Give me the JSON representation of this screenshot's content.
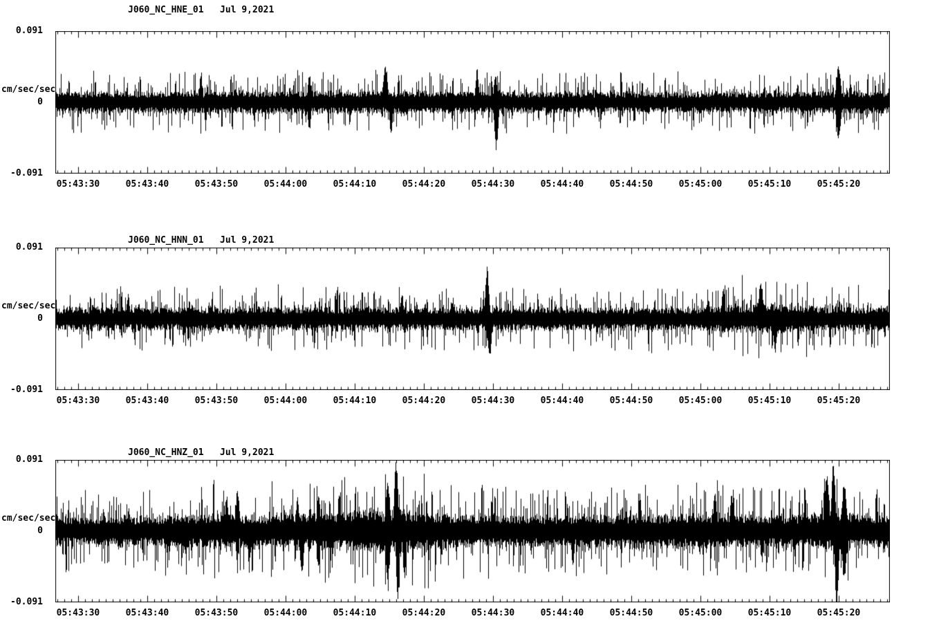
{
  "page": {
    "background": "#ffffff",
    "trace_color": "#000000",
    "description": "Three-component strong-motion seismogram display (acceleration traces) for station J060, network NC, Jul 9 2021"
  },
  "chart_data": [
    {
      "type": "line",
      "kind": "seismogram",
      "title": "J060_NC_HNE_01   Jul 9,2021",
      "station": "J060_NC_HNE_01",
      "date": "Jul 9,2021",
      "ylabel": "cm/sec/sec",
      "ytick_labels": [
        "0.091",
        "0",
        "-0.091"
      ],
      "ylim": [
        -0.091,
        0.091
      ],
      "x_tick_labels": [
        "05:43:30",
        "05:43:40",
        "05:43:50",
        "05:44:00",
        "05:44:10",
        "05:44:20",
        "05:44:30",
        "05:44:40",
        "05:44:50",
        "05:45:00",
        "05:45:10",
        "05:45:20"
      ],
      "axis": {
        "major_first_frac": 0.0273,
        "major_step_frac": 0.08285,
        "minors_per_major": 10,
        "grid": false
      },
      "noise": {
        "seed": 11,
        "base_amp": 0.0155,
        "envelope": [
          [
            0,
            1
          ],
          [
            0.38,
            1.05
          ],
          [
            0.55,
            1.0
          ],
          [
            0.78,
            0.92
          ],
          [
            0.9,
            1.0
          ],
          [
            1,
            1.02
          ]
        ],
        "spikes": [
          {
            "f": 0.174,
            "amp": 0.034,
            "dir": 1,
            "w": 2
          },
          {
            "f": 0.304,
            "amp": 0.036,
            "dir": 0,
            "w": 2
          },
          {
            "f": 0.395,
            "amp": 0.044,
            "dir": 1,
            "w": 3
          },
          {
            "f": 0.402,
            "amp": 0.04,
            "dir": -1,
            "w": 2
          },
          {
            "f": 0.505,
            "amp": 0.042,
            "dir": 1,
            "w": 2
          },
          {
            "f": 0.527,
            "amp": 0.036,
            "dir": 1,
            "w": 2
          },
          {
            "f": 0.528,
            "amp": 0.057,
            "dir": -1,
            "w": 2.5
          },
          {
            "f": 0.938,
            "amp": 0.045,
            "dir": 0,
            "w": 3
          }
        ]
      }
    },
    {
      "type": "line",
      "kind": "seismogram",
      "title": "J060_NC_HNN_01   Jul 9,2021",
      "station": "J060_NC_HNN_01",
      "date": "Jul 9,2021",
      "ylabel": "cm/sec/sec",
      "ytick_labels": [
        "0.091",
        "0",
        "-0.091"
      ],
      "ylim": [
        -0.091,
        0.091
      ],
      "x_tick_labels": [
        "05:43:30",
        "05:43:40",
        "05:43:50",
        "05:44:00",
        "05:44:10",
        "05:44:20",
        "05:44:30",
        "05:44:40",
        "05:44:50",
        "05:45:00",
        "05:45:10",
        "05:45:20"
      ],
      "axis": {
        "major_first_frac": 0.0273,
        "major_step_frac": 0.08285,
        "minors_per_major": 10,
        "grid": false
      },
      "noise": {
        "seed": 22,
        "base_amp": 0.0165,
        "envelope": [
          [
            0,
            1.02
          ],
          [
            0.5,
            1.0
          ],
          [
            0.77,
            0.98
          ],
          [
            0.81,
            1.25
          ],
          [
            0.88,
            1.3
          ],
          [
            0.92,
            1.02
          ],
          [
            1,
            1
          ]
        ],
        "spikes": [
          {
            "f": 0.087,
            "amp": 0.03,
            "dir": 1,
            "w": 2
          },
          {
            "f": 0.415,
            "amp": 0.032,
            "dir": 1,
            "w": 2
          },
          {
            "f": 0.517,
            "amp": 0.062,
            "dir": 1,
            "w": 2.5
          },
          {
            "f": 0.52,
            "amp": 0.05,
            "dir": -1,
            "w": 2.5
          },
          {
            "f": 0.8,
            "amp": 0.04,
            "dir": 1,
            "w": 2
          },
          {
            "f": 0.845,
            "amp": 0.046,
            "dir": 1,
            "w": 3
          },
          {
            "f": 0.862,
            "amp": 0.042,
            "dir": -1,
            "w": 2
          }
        ]
      }
    },
    {
      "type": "line",
      "kind": "seismogram",
      "title": "J060_NC_HNZ_01   Jul 9,2021",
      "station": "J060_NC_HNZ_01",
      "date": "Jul 9,2021",
      "ylabel": "cm/sec/sec",
      "ytick_labels": [
        "0.091",
        "0",
        "-0.091"
      ],
      "ylim": [
        -0.091,
        0.091
      ],
      "x_tick_labels": [
        "05:43:30",
        "05:43:40",
        "05:43:50",
        "05:44:00",
        "05:44:10",
        "05:44:20",
        "05:44:30",
        "05:44:40",
        "05:44:50",
        "05:45:00",
        "05:45:10",
        "05:45:20"
      ],
      "axis": {
        "major_first_frac": 0.0273,
        "major_step_frac": 0.08285,
        "minors_per_major": 10,
        "grid": false
      },
      "noise": {
        "seed": 33,
        "base_amp": 0.021,
        "envelope": [
          [
            0,
            0.95
          ],
          [
            0.1,
            1.0
          ],
          [
            0.18,
            1.2
          ],
          [
            0.24,
            1.1
          ],
          [
            0.3,
            1.2
          ],
          [
            0.36,
            1.35
          ],
          [
            0.41,
            1.5
          ],
          [
            0.46,
            1.25
          ],
          [
            0.55,
            1.05
          ],
          [
            0.62,
            1.1
          ],
          [
            0.7,
            1.15
          ],
          [
            0.78,
            1.2
          ],
          [
            0.85,
            1.1
          ],
          [
            0.9,
            1.15
          ],
          [
            0.93,
            1.35
          ],
          [
            0.97,
            1.1
          ],
          [
            1,
            1.05
          ]
        ],
        "spikes": [
          {
            "f": 0.205,
            "amp": 0.045,
            "dir": 1,
            "w": 2
          },
          {
            "f": 0.218,
            "amp": 0.05,
            "dir": 1,
            "w": 2.5
          },
          {
            "f": 0.232,
            "amp": 0.042,
            "dir": -1,
            "w": 2
          },
          {
            "f": 0.29,
            "amp": 0.042,
            "dir": 1,
            "w": 2
          },
          {
            "f": 0.295,
            "amp": 0.055,
            "dir": -1,
            "w": 2.5
          },
          {
            "f": 0.315,
            "amp": 0.05,
            "dir": 0,
            "w": 2
          },
          {
            "f": 0.34,
            "amp": 0.05,
            "dir": 1,
            "w": 2
          },
          {
            "f": 0.398,
            "amp": 0.06,
            "dir": 0,
            "w": 3
          },
          {
            "f": 0.408,
            "amp": 0.086,
            "dir": 1,
            "w": 2.5
          },
          {
            "f": 0.41,
            "amp": 0.09,
            "dir": -1,
            "w": 2
          },
          {
            "f": 0.418,
            "amp": 0.06,
            "dir": -1,
            "w": 2
          },
          {
            "f": 0.62,
            "amp": 0.045,
            "dir": -1,
            "w": 2
          },
          {
            "f": 0.7,
            "amp": 0.045,
            "dir": 1,
            "w": 2
          },
          {
            "f": 0.79,
            "amp": 0.05,
            "dir": 1,
            "w": 2
          },
          {
            "f": 0.81,
            "amp": 0.045,
            "dir": 1,
            "w": 2
          },
          {
            "f": 0.924,
            "amp": 0.07,
            "dir": 1,
            "w": 3
          },
          {
            "f": 0.932,
            "amp": 0.086,
            "dir": 1,
            "w": 2.5
          },
          {
            "f": 0.936,
            "amp": 0.092,
            "dir": -1,
            "w": 2.5
          },
          {
            "f": 0.945,
            "amp": 0.06,
            "dir": 0,
            "w": 3
          }
        ]
      }
    }
  ]
}
